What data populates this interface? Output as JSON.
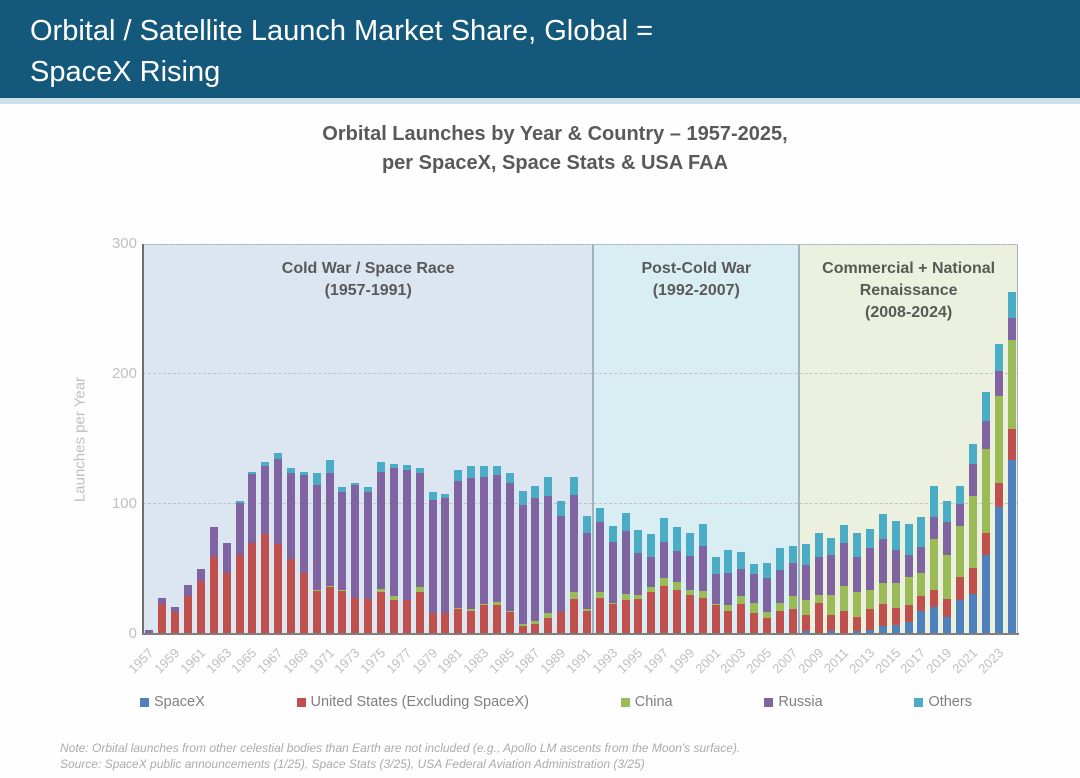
{
  "header": {
    "title_line1": "Orbital / Satellite Launch Market Share, Global =",
    "title_line2": "SpaceX Rising",
    "bg_color": "#14587B"
  },
  "chart_title": {
    "line1": "Orbital Launches by Year & Country – 1957-2025,",
    "line2": "per SpaceX, Space Stats & USA FAA"
  },
  "y_axis": {
    "label": "Launches per Year",
    "ticks": [
      0,
      100,
      200,
      300
    ],
    "max": 300
  },
  "x_axis": {
    "tick_years": [
      1957,
      1959,
      1961,
      1963,
      1965,
      1967,
      1969,
      1971,
      1973,
      1975,
      1977,
      1979,
      1981,
      1983,
      1985,
      1987,
      1989,
      1991,
      1993,
      1995,
      1997,
      1999,
      2001,
      2003,
      2005,
      2007,
      2009,
      2011,
      2013,
      2015,
      2017,
      2019,
      2021,
      2023
    ]
  },
  "legend": {
    "items": [
      {
        "label": "SpaceX",
        "color": "#4F81BD"
      },
      {
        "label": "United States (Excluding SpaceX)",
        "color": "#C0504D"
      },
      {
        "label": "China",
        "color": "#9BBB59"
      },
      {
        "label": "Russia",
        "color": "#8064A2"
      },
      {
        "label": "Others",
        "color": "#4BACC6"
      }
    ]
  },
  "footnotes": {
    "note": "Note: Orbital launches from other celestial bodies than Earth are not included (e.g., Apollo LM ascents from the Moon's surface).",
    "source": "Source: SpaceX public announcements (1/25), Space Stats (3/25), USA Federal Aviation Administration (3/25)"
  },
  "chart_data": {
    "type": "bar",
    "stacked": true,
    "title": "Orbital Launches by Year & Country – 1957-2025, per SpaceX, Space Stats & USA FAA",
    "xlabel": "",
    "ylabel": "Launches per Year",
    "ylim": [
      0,
      300
    ],
    "grid": "dashed horizontal at 100/200/300",
    "legend_position": "bottom",
    "x": [
      1957,
      1958,
      1959,
      1960,
      1961,
      1962,
      1963,
      1964,
      1965,
      1966,
      1967,
      1968,
      1969,
      1970,
      1971,
      1972,
      1973,
      1974,
      1975,
      1976,
      1977,
      1978,
      1979,
      1980,
      1981,
      1982,
      1983,
      1984,
      1985,
      1986,
      1987,
      1988,
      1989,
      1990,
      1991,
      1992,
      1993,
      1994,
      1995,
      1996,
      1997,
      1998,
      1999,
      2000,
      2001,
      2002,
      2003,
      2004,
      2005,
      2006,
      2007,
      2008,
      2009,
      2010,
      2011,
      2012,
      2013,
      2014,
      2015,
      2016,
      2017,
      2018,
      2019,
      2020,
      2021,
      2022,
      2023,
      2024
    ],
    "series": [
      {
        "name": "SpaceX",
        "color": "#4F81BD",
        "values": [
          0,
          0,
          0,
          0,
          0,
          0,
          0,
          0,
          0,
          0,
          0,
          0,
          0,
          0,
          0,
          0,
          0,
          0,
          0,
          0,
          0,
          0,
          0,
          0,
          0,
          0,
          0,
          0,
          0,
          0,
          0,
          0,
          0,
          0,
          0,
          0,
          0,
          0,
          0,
          0,
          0,
          0,
          0,
          0,
          0,
          0,
          0,
          0,
          0,
          1,
          1,
          2,
          1,
          2,
          0,
          2,
          3,
          6,
          7,
          9,
          18,
          21,
          13,
          26,
          31,
          61,
          98,
          134
        ]
      },
      {
        "name": "United States (Excluding SpaceX)",
        "color": "#C0504D",
        "values": [
          1,
          23,
          17,
          29,
          41,
          59,
          47,
          61,
          70,
          77,
          69,
          58,
          47,
          33,
          36,
          33,
          28,
          27,
          32,
          26,
          26,
          32,
          16,
          16,
          19,
          18,
          22,
          22,
          17,
          6,
          8,
          12,
          17,
          27,
          18,
          28,
          23,
          26,
          27,
          32,
          37,
          34,
          30,
          28,
          22,
          18,
          23,
          16,
          12,
          17,
          18,
          13,
          23,
          13,
          18,
          11,
          16,
          17,
          13,
          13,
          11,
          13,
          14,
          18,
          20,
          17,
          18,
          24
        ]
      },
      {
        "name": "China",
        "color": "#9BBB59",
        "values": [
          0,
          0,
          0,
          0,
          0,
          0,
          0,
          0,
          0,
          0,
          0,
          0,
          0,
          1,
          1,
          1,
          0,
          0,
          3,
          3,
          0,
          4,
          0,
          0,
          1,
          1,
          1,
          3,
          1,
          2,
          2,
          4,
          0,
          5,
          1,
          4,
          1,
          5,
          3,
          4,
          6,
          6,
          4,
          5,
          1,
          4,
          6,
          8,
          5,
          6,
          10,
          11,
          6,
          15,
          19,
          19,
          15,
          16,
          19,
          22,
          18,
          39,
          34,
          39,
          55,
          64,
          67,
          68
        ]
      },
      {
        "name": "Russia",
        "color": "#8064A2",
        "values": [
          2,
          5,
          4,
          9,
          9,
          23,
          23,
          40,
          53,
          52,
          66,
          66,
          75,
          81,
          87,
          75,
          87,
          82,
          90,
          99,
          100,
          88,
          87,
          89,
          98,
          101,
          98,
          97,
          98,
          91,
          95,
          90,
          74,
          75,
          59,
          54,
          47,
          48,
          32,
          23,
          28,
          24,
          26,
          35,
          23,
          25,
          21,
          22,
          26,
          25,
          26,
          27,
          29,
          31,
          33,
          27,
          32,
          34,
          26,
          17,
          20,
          17,
          25,
          17,
          25,
          22,
          19,
          17
        ]
      },
      {
        "name": "Others",
        "color": "#4BACC6",
        "values": [
          0,
          0,
          0,
          0,
          0,
          0,
          0,
          1,
          2,
          3,
          4,
          4,
          3,
          9,
          10,
          4,
          1,
          4,
          7,
          3,
          4,
          4,
          6,
          3,
          8,
          9,
          8,
          7,
          8,
          11,
          9,
          15,
          11,
          14,
          13,
          11,
          12,
          14,
          18,
          18,
          18,
          18,
          18,
          17,
          13,
          18,
          13,
          8,
          12,
          17,
          13,
          16,
          19,
          13,
          14,
          19,
          15,
          19,
          22,
          24,
          23,
          24,
          16,
          14,
          15,
          22,
          21,
          20
        ]
      }
    ],
    "eras": [
      {
        "name": "Cold War / Space Race",
        "label_lines": [
          "Cold War / Space Race",
          "(1957-1991)"
        ],
        "start_year": 1957,
        "end_year": 1991,
        "bg": "#DCE6F1"
      },
      {
        "name": "Post-Cold War",
        "label_lines": [
          "Post-Cold War",
          "(1992-2007)"
        ],
        "start_year": 1992,
        "end_year": 2007,
        "bg": "#D9EEF3"
      },
      {
        "name": "Commercial + National Renaissance",
        "label_lines": [
          "Commercial + National",
          "Renaissance",
          "(2008-2024)"
        ],
        "start_year": 2008,
        "end_year": 2024,
        "bg": "#EBF1DE"
      }
    ]
  }
}
